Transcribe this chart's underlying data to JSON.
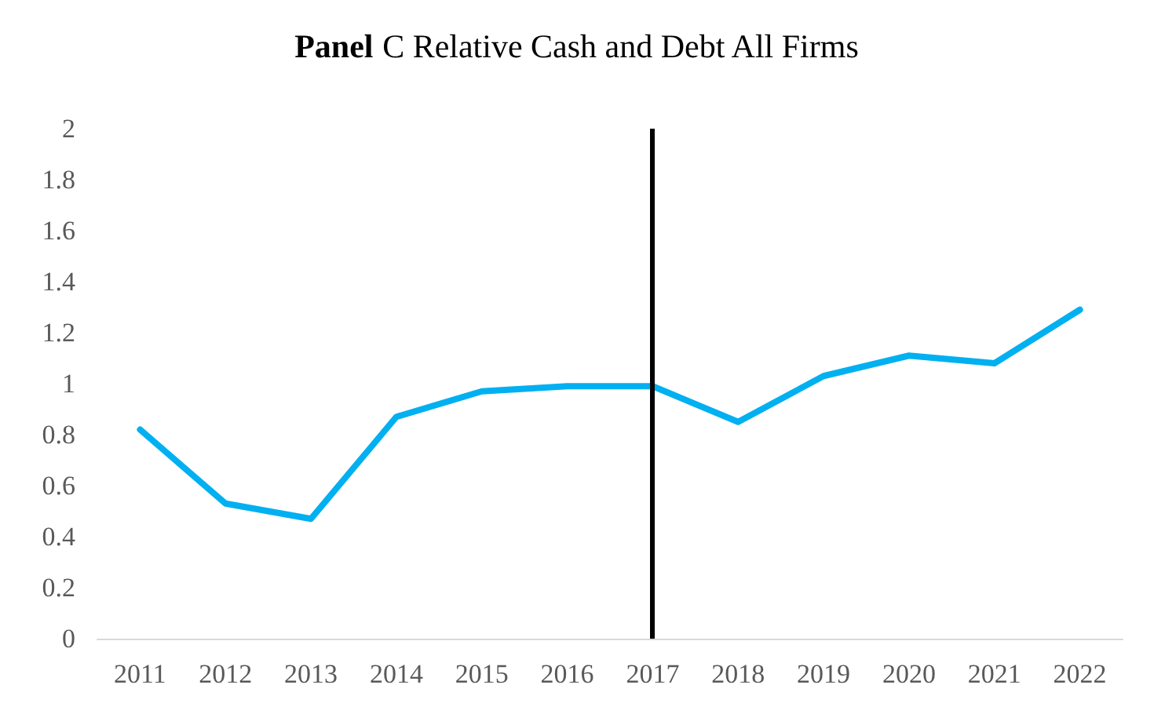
{
  "chart_data": {
    "type": "line",
    "title": "Panel C Relative Cash and Debt All Firms",
    "categories": [
      "2011",
      "2012",
      "2013",
      "2014",
      "2015",
      "2016",
      "2017",
      "2018",
      "2019",
      "2020",
      "2021",
      "2022"
    ],
    "series": [
      {
        "color": "#00b0f0",
        "values": [
          0.82,
          0.53,
          0.47,
          0.87,
          0.97,
          0.99,
          0.99,
          0.85,
          1.03,
          1.11,
          1.08,
          1.29
        ]
      }
    ],
    "ylim": [
      0,
      2
    ],
    "yticks": [
      0,
      0.2,
      0.4,
      0.6,
      0.8,
      1,
      1.2,
      1.4,
      1.6,
      1.8,
      2
    ],
    "ref_lines": [
      {
        "axis": "x",
        "value": "2017",
        "color": "#000000"
      }
    ],
    "grid": false,
    "marker": "none",
    "line_style": "solid"
  }
}
